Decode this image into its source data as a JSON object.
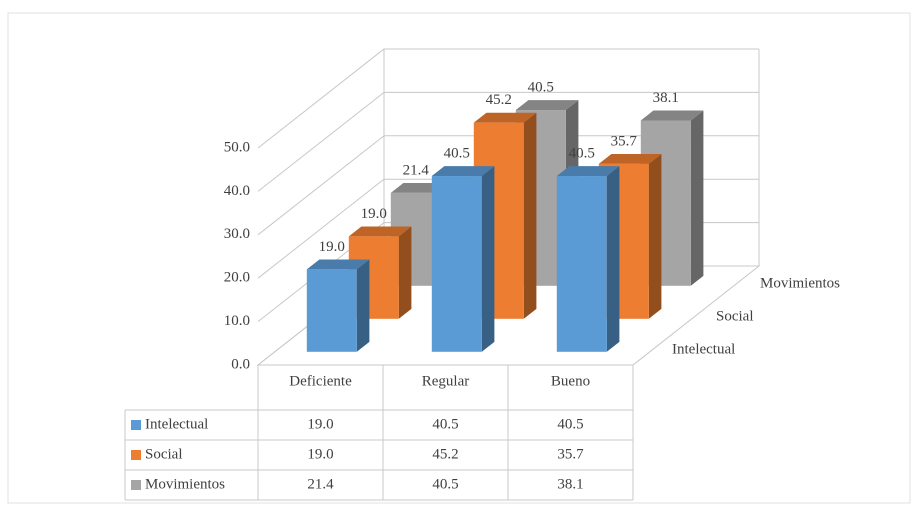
{
  "chart_data": {
    "type": "bar3d",
    "categories": [
      "Deficiente",
      "Regular",
      "Bueno"
    ],
    "series": [
      {
        "name": "Intelectual",
        "color": "#5b9bd5",
        "values": [
          19.0,
          40.5,
          40.5
        ],
        "value_labels": [
          "19.0",
          "40.5",
          "40.5"
        ]
      },
      {
        "name": "Social",
        "color": "#ed7d31",
        "values": [
          19.0,
          45.2,
          35.7
        ],
        "value_labels": [
          "19.0",
          "45.2",
          "35.7"
        ]
      },
      {
        "name": "Movimientos",
        "color": "#a5a5a5",
        "values": [
          21.4,
          40.5,
          38.1
        ],
        "value_labels": [
          "21.4",
          "40.5",
          "38.1"
        ]
      }
    ],
    "ylim": [
      0,
      50
    ],
    "yticks": [
      {
        "value": 0,
        "label": "0.0"
      },
      {
        "value": 10,
        "label": "10.0"
      },
      {
        "value": 20,
        "label": "20.0"
      },
      {
        "value": 30,
        "label": "30.0"
      },
      {
        "value": 40,
        "label": "40.0"
      },
      {
        "value": 50,
        "label": "50.0"
      }
    ],
    "grid": true,
    "data_table": true
  }
}
